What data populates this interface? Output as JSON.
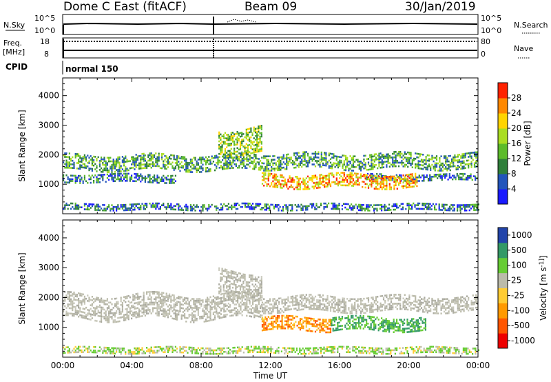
{
  "header": {
    "radar_title": "Dome C East (fitACF)",
    "beam": "Beam 09",
    "date": "30/Jan/2019"
  },
  "panels": {
    "nsky_label": "N.Sky",
    "nsky_ticks": [
      "10^5",
      "10^0"
    ],
    "nsearch_label": "N.Search",
    "nsearch_ticks": [
      "10^5",
      "10^0"
    ],
    "freq_label": "Freq.",
    "freq_unit": "[MHz]",
    "freq_ticks": [
      "18",
      "8"
    ],
    "nave_label": "Nave",
    "nave_ticks": [
      "80",
      "0"
    ],
    "cpid_label": "CPID",
    "cpid_value": "normal 150"
  },
  "colors": {
    "power": [
      "#1a1aff",
      "#2255bb",
      "#2f7f3a",
      "#5cbb2a",
      "#aadd22",
      "#ffd400",
      "#ff8800",
      "#ff2200"
    ],
    "velocity": [
      "#ee0000",
      "#ff5500",
      "#ff9900",
      "#ffcc33",
      "#bbbbaa",
      "#66cc33",
      "#339966",
      "#2244aa"
    ],
    "ground_scatter": "#bbbbaa"
  },
  "chart_data": [
    {
      "type": "heatmap",
      "name": "power",
      "x_range_hours": [
        0,
        24
      ],
      "xlabel": "Time UT",
      "x_ticks": [
        "00:00",
        "04:00",
        "08:00",
        "12:00",
        "16:00",
        "20:00",
        "00:00"
      ],
      "ylabel": "Slant Range [km]",
      "y_range": [
        0,
        4600
      ],
      "y_ticks": [
        1000,
        2000,
        3000,
        4000
      ],
      "colorbar_label": "Power [dB]",
      "colorbar_ticks": [
        "4",
        "8",
        "12",
        "16",
        "20",
        "24",
        "28"
      ],
      "colorbar_range": [
        0,
        32
      ],
      "echo_regions": [
        {
          "t": [
            0.0,
            11.5
          ],
          "r": [
            1500,
            2000
          ],
          "level": 12
        },
        {
          "t": [
            11.5,
            24.0
          ],
          "r": [
            1550,
            2050
          ],
          "level": 12
        },
        {
          "t": [
            0.0,
            6.5
          ],
          "r": [
            1100,
            1350
          ],
          "level": 8
        },
        {
          "t": [
            17.5,
            24.0
          ],
          "r": [
            1150,
            1350
          ],
          "level": 8
        },
        {
          "t": [
            9.0,
            11.5
          ],
          "r": [
            2000,
            2900
          ],
          "level": 16
        },
        {
          "t": [
            11.5,
            20.5
          ],
          "r": [
            900,
            1350
          ],
          "level": 24
        },
        {
          "t": [
            0.0,
            24.0
          ],
          "r": [
            150,
            350
          ],
          "level": 8
        }
      ]
    },
    {
      "type": "heatmap",
      "name": "velocity",
      "x_range_hours": [
        0,
        24
      ],
      "xlabel": "Time UT",
      "x_ticks": [
        "00:00",
        "04:00",
        "08:00",
        "12:00",
        "16:00",
        "20:00",
        "00:00"
      ],
      "ylabel": "Slant Range [km]",
      "y_range": [
        0,
        4600
      ],
      "y_ticks": [
        1000,
        2000,
        3000,
        4000
      ],
      "colorbar_label": "Velocity [m s^-1]",
      "colorbar_ticks": [
        "1000",
        "500",
        "100",
        "25",
        "-25",
        "-100",
        "-500",
        "-1000"
      ],
      "echo_regions": [
        {
          "t": [
            0.0,
            11.5
          ],
          "r": [
            1300,
            2100
          ],
          "level": "ground"
        },
        {
          "t": [
            11.5,
            24.0
          ],
          "r": [
            1550,
            2050
          ],
          "level": "ground"
        },
        {
          "t": [
            9.0,
            11.5
          ],
          "r": [
            2000,
            2900
          ],
          "level": "ground"
        },
        {
          "t": [
            11.5,
            15.5
          ],
          "r": [
            900,
            1350
          ],
          "level": -100
        },
        {
          "t": [
            15.5,
            21.0
          ],
          "r": [
            900,
            1350
          ],
          "level": 100
        },
        {
          "t": [
            0.0,
            24.0
          ],
          "r": [
            150,
            350
          ],
          "level": 25
        }
      ]
    }
  ]
}
